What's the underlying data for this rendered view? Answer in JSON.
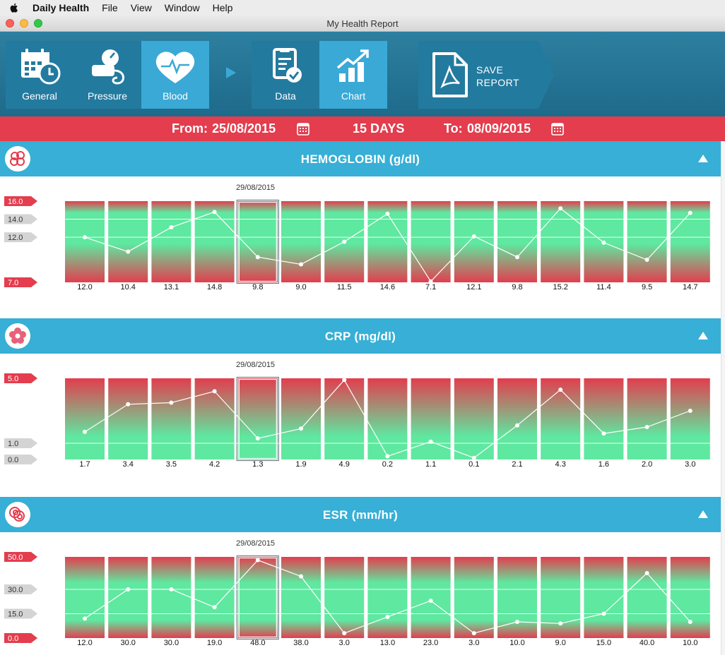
{
  "menubar": {
    "app_name": "Daily Health",
    "items": [
      "File",
      "View",
      "Window",
      "Help"
    ]
  },
  "window": {
    "title": "My Health Report"
  },
  "toolbar": {
    "general_label": "General",
    "pressure_label": "Pressure",
    "blood_label": "Blood",
    "data_label": "Data",
    "chart_label": "Chart",
    "save_line1": "SAVE",
    "save_line2": "REPORT",
    "active_tab": "Blood",
    "active_view": "Chart"
  },
  "date_range": {
    "from_label": "From:",
    "from_date": "25/08/2015",
    "days_label": "15 DAYS",
    "to_label": "To:",
    "to_date": "08/09/2015"
  },
  "colors": {
    "accent_blue": "#37afd6",
    "toolbar_blue": "#1e6a8b",
    "date_bar_red": "#e33d4e",
    "range_green": "#5fe8a0",
    "range_red": "#e33d4e"
  },
  "sections": [
    {
      "title": "HEMOGLOBIN (g/dl)",
      "icon": "blood-cells-icon",
      "selected_date": "29/08/2015"
    },
    {
      "title": "CRP (mg/dl)",
      "icon": "flower-icon",
      "selected_date": "29/08/2015"
    },
    {
      "title": "ESR (mm/hr)",
      "icon": "red-circles-icon",
      "selected_date": "29/08/2015"
    }
  ],
  "chart_data": [
    {
      "type": "line",
      "values": [
        12.0,
        10.4,
        13.1,
        14.8,
        9.8,
        9.0,
        11.5,
        14.6,
        7.1,
        12.1,
        9.8,
        15.2,
        11.4,
        9.5,
        14.7
      ],
      "value_labels": [
        "12.0",
        "10.4",
        "13.1",
        "14.8",
        "9.8",
        "9.0",
        "11.5",
        "14.6",
        "7.1",
        "12.1",
        "9.8",
        "15.2",
        "11.4",
        "9.5",
        "14.7"
      ],
      "selected_index": 4,
      "ylim": [
        7.0,
        16.0
      ],
      "y_ticks": [
        {
          "value": 16.0,
          "label": "16.0",
          "style": "red"
        },
        {
          "value": 14.0,
          "label": "14.0",
          "style": "gray"
        },
        {
          "value": 12.0,
          "label": "12.0",
          "style": "gray"
        },
        {
          "value": 7.0,
          "label": "7.0",
          "style": "red"
        }
      ],
      "reference_lines": [
        14.0,
        12.0
      ],
      "normal_range": [
        12.0,
        14.0
      ]
    },
    {
      "type": "line",
      "values": [
        1.7,
        3.4,
        3.5,
        4.2,
        1.3,
        1.9,
        4.9,
        0.2,
        1.1,
        0.1,
        2.1,
        4.3,
        1.6,
        2.0,
        3.0
      ],
      "value_labels": [
        "1.7",
        "3.4",
        "3.5",
        "4.2",
        "1.3",
        "1.9",
        "4.9",
        "0.2",
        "1.1",
        "0.1",
        "2.1",
        "4.3",
        "1.6",
        "2.0",
        "3.0"
      ],
      "selected_index": 4,
      "ylim": [
        0.0,
        5.0
      ],
      "y_ticks": [
        {
          "value": 5.0,
          "label": "5.0",
          "style": "red"
        },
        {
          "value": 1.0,
          "label": "1.0",
          "style": "gray"
        },
        {
          "value": 0.0,
          "label": "0.0",
          "style": "gray"
        }
      ],
      "reference_lines": [
        1.0
      ],
      "normal_range": [
        0.0,
        1.0
      ]
    },
    {
      "type": "line",
      "values": [
        12.0,
        30.0,
        30.0,
        19.0,
        48.0,
        38.0,
        3.0,
        13.0,
        23.0,
        3.0,
        10.0,
        9.0,
        15.0,
        40.0,
        10.0
      ],
      "value_labels": [
        "12.0",
        "30.0",
        "30.0",
        "19.0",
        "48.0",
        "38.0",
        "3.0",
        "13.0",
        "23.0",
        "3.0",
        "10.0",
        "9.0",
        "15.0",
        "40.0",
        "10.0"
      ],
      "selected_index": 4,
      "ylim": [
        0.0,
        50.0
      ],
      "y_ticks": [
        {
          "value": 50.0,
          "label": "50.0",
          "style": "red"
        },
        {
          "value": 30.0,
          "label": "30.0",
          "style": "gray"
        },
        {
          "value": 15.0,
          "label": "15.0",
          "style": "gray"
        },
        {
          "value": 0.0,
          "label": "0.0",
          "style": "red"
        }
      ],
      "reference_lines": [
        30.0,
        15.0
      ],
      "normal_range": [
        15.0,
        30.0
      ]
    }
  ]
}
